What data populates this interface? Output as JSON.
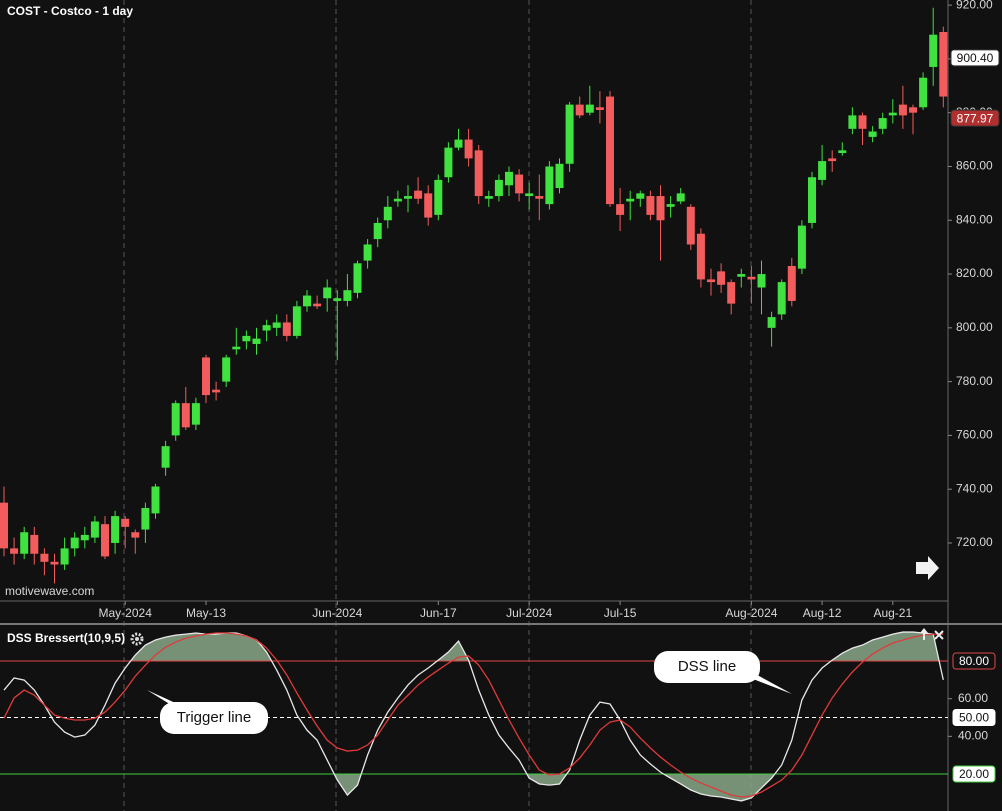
{
  "chart_data": [
    {
      "type": "candlestick",
      "title": "COST - Costco - 1 day",
      "watermark": "motivewave.com",
      "categories": [
        null,
        null,
        null,
        null,
        null,
        null,
        null,
        null,
        null,
        null,
        null,
        null,
        "May-2024",
        null,
        null,
        null,
        null,
        null,
        null,
        null,
        "May-13",
        null,
        null,
        null,
        null,
        null,
        null,
        null,
        null,
        null,
        null,
        null,
        null,
        "Jun-2024",
        null,
        null,
        null,
        null,
        null,
        null,
        null,
        null,
        null,
        "Jun-17",
        null,
        null,
        null,
        null,
        null,
        null,
        null,
        null,
        "Jul-2024",
        null,
        null,
        null,
        null,
        null,
        null,
        null,
        null,
        "Jul-15",
        null,
        null,
        null,
        null,
        null,
        null,
        null,
        null,
        null,
        null,
        null,
        null,
        "Aug-2024",
        null,
        null,
        null,
        null,
        null,
        null,
        "Aug-12",
        null,
        null,
        null,
        null,
        null,
        null,
        "Aug-21",
        null,
        null,
        null,
        null,
        null
      ],
      "open": [
        735,
        718,
        716,
        723,
        716,
        713,
        712,
        718,
        721,
        722,
        727,
        720,
        729,
        724,
        725,
        731,
        748,
        760,
        772,
        764,
        789,
        777,
        780,
        792,
        795,
        794,
        799,
        800,
        802,
        797,
        808,
        809,
        811,
        810,
        810,
        813,
        825,
        833,
        840,
        847,
        848,
        851,
        850,
        842,
        856,
        867,
        870,
        866,
        848,
        849,
        853,
        857,
        849,
        849,
        846,
        852,
        861,
        883,
        880,
        882,
        886,
        846,
        847,
        848,
        849,
        849,
        845,
        847,
        845,
        835,
        818,
        821,
        817,
        819,
        819,
        815,
        800,
        805,
        823,
        822,
        839,
        855,
        863,
        865,
        874,
        879,
        871,
        874,
        879,
        883,
        882,
        882,
        897,
        910
      ],
      "high": [
        741,
        722,
        726,
        726,
        718,
        716,
        722,
        724,
        726,
        730,
        730,
        732,
        730,
        725,
        735,
        742,
        758,
        773,
        778,
        774,
        790,
        780,
        790,
        800,
        799,
        800,
        803,
        805,
        805,
        810,
        814,
        812,
        818,
        814,
        820,
        825,
        833,
        841,
        849,
        851,
        853,
        856,
        853,
        857,
        869,
        874,
        874,
        868,
        851,
        857,
        860,
        859,
        854,
        857,
        862,
        863,
        884,
        886,
        890,
        888,
        888,
        852,
        851,
        851,
        851,
        853,
        849,
        852,
        846,
        837,
        822,
        824,
        818,
        822,
        823,
        825,
        806,
        818,
        826,
        840,
        858,
        868,
        866,
        869,
        882,
        880,
        875,
        880,
        885,
        890,
        883,
        895,
        919,
        912
      ],
      "low": [
        715,
        712,
        714,
        712,
        708,
        705,
        710,
        715,
        718,
        720,
        714,
        716,
        718,
        716,
        720,
        729,
        745,
        758,
        762,
        762,
        772,
        773,
        778,
        790,
        792,
        790,
        795,
        797,
        795,
        796,
        806,
        807,
        806,
        788,
        808,
        811,
        822,
        830,
        837,
        845,
        843,
        846,
        838,
        840,
        854,
        866,
        860,
        846,
        845,
        847,
        849,
        847,
        844,
        840,
        844,
        850,
        858,
        878,
        879,
        876,
        845,
        836,
        840,
        845,
        840,
        825,
        841,
        846,
        829,
        815,
        812,
        813,
        805,
        815,
        809,
        805,
        793,
        803,
        808,
        820,
        837,
        853,
        858,
        864,
        872,
        868,
        869,
        872,
        876,
        874,
        872,
        881,
        890,
        882
      ],
      "close": [
        718,
        716,
        724,
        716,
        713,
        712,
        718,
        722,
        723,
        728,
        715,
        730,
        726,
        722,
        733,
        741,
        756,
        772,
        763,
        772,
        775,
        776,
        789,
        793,
        797,
        796,
        801,
        802,
        797,
        808,
        812,
        808,
        815,
        811,
        814,
        824,
        831,
        839,
        845,
        848,
        849,
        848,
        841,
        855,
        867,
        870,
        863,
        849,
        849,
        855,
        858,
        850,
        850,
        848,
        860,
        861,
        883,
        879,
        883,
        881,
        846,
        842,
        848,
        850,
        842,
        840,
        846,
        850,
        831,
        818,
        817,
        816,
        809,
        820,
        818,
        820,
        804,
        817,
        810,
        838,
        856,
        862,
        862,
        866,
        879,
        874,
        873,
        878,
        880,
        879,
        880,
        893,
        909,
        886
      ],
      "up_color": "#3fe23f",
      "down_color": "#f25c5c",
      "ylim": [
        698.8,
        921.9
      ],
      "yticks": [
        {
          "value": 720,
          "label": "720.00"
        },
        {
          "value": 740,
          "label": "740.00"
        },
        {
          "value": 760,
          "label": "760.00"
        },
        {
          "value": 780,
          "label": "780.00"
        },
        {
          "value": 800,
          "label": "800.00"
        },
        {
          "value": 820,
          "label": "820.00"
        },
        {
          "value": 840,
          "label": "840.00"
        },
        {
          "value": 860,
          "label": "860.00"
        },
        {
          "value": 880,
          "label": "880.00"
        },
        {
          "value": 900,
          "label": "900.00"
        },
        {
          "value": 920,
          "label": "920.00"
        }
      ],
      "grid": false,
      "price_markers": [
        {
          "value": 900.4,
          "label": "900.40",
          "color": "#ffffff",
          "text_color": "#111111"
        },
        {
          "value": 877.97,
          "label": "877.97",
          "color": "#b03030",
          "text_color": "#ffffff"
        }
      ]
    },
    {
      "type": "line",
      "title": "DSS Bressert(10,9,5)",
      "series": [
        {
          "color": "#e8e8e8",
          "values": [
            64.6,
            71.0,
            69.9,
            64.6,
            56.6,
            47.6,
            42.3,
            39.6,
            40.7,
            46.0,
            56.6,
            68.3,
            76.3,
            83.2,
            88.5,
            91.2,
            92.7,
            93.8,
            94.3,
            94.9,
            94.3,
            94.3,
            94.9,
            94.9,
            93.3,
            91.2,
            84.8,
            75.2,
            64.6,
            51.3,
            43.3,
            38.0,
            27.4,
            16.8,
            8.8,
            14.1,
            30.1,
            43.3,
            52.9,
            60.4,
            67.3,
            72.6,
            76.3,
            80.5,
            84.8,
            90.6,
            80.5,
            64.6,
            51.3,
            40.7,
            33.8,
            27.4,
            17.8,
            14.7,
            14.1,
            14.7,
            22.1,
            38.0,
            51.3,
            58.2,
            57.2,
            48.7,
            38.0,
            30.1,
            25.3,
            21.0,
            17.8,
            14.7,
            11.5,
            9.4,
            8.3,
            7.8,
            6.7,
            5.7,
            7.3,
            12.6,
            17.8,
            24.8,
            38.0,
            59.3,
            69.9,
            76.3,
            80.5,
            84.2,
            86.9,
            88.5,
            91.2,
            92.7,
            94.3,
            95.4,
            95.4,
            94.9,
            94.3,
            70.0
          ]
        },
        {
          "color": "#e03a3a",
          "values": [
            49.7,
            60.4,
            64.6,
            61.9,
            56.6,
            51.3,
            49.7,
            48.7,
            48.7,
            49.7,
            52.9,
            58.2,
            64.6,
            72.0,
            77.9,
            83.2,
            87.4,
            90.1,
            92.2,
            93.3,
            94.3,
            94.9,
            94.9,
            94.3,
            93.3,
            91.2,
            86.9,
            80.5,
            72.6,
            63.0,
            54.0,
            45.5,
            38.0,
            33.8,
            32.2,
            32.7,
            35.4,
            40.7,
            48.7,
            56.6,
            61.9,
            67.3,
            71.5,
            75.2,
            78.9,
            82.1,
            82.7,
            77.9,
            69.9,
            59.3,
            48.7,
            39.1,
            30.1,
            22.1,
            19.5,
            20.0,
            23.2,
            28.5,
            35.4,
            43.3,
            47.6,
            48.7,
            45.0,
            39.1,
            33.8,
            29.0,
            24.8,
            21.0,
            17.8,
            15.2,
            13.1,
            10.9,
            8.8,
            7.8,
            8.3,
            10.4,
            13.6,
            16.8,
            22.1,
            30.1,
            40.7,
            51.3,
            60.4,
            67.8,
            74.2,
            79.5,
            83.7,
            86.9,
            89.6,
            91.2,
            92.7,
            93.8,
            94.3,
            94.3
          ]
        }
      ],
      "ylim": [
        0.35,
        96.5
      ],
      "yticks": [
        {
          "value": 60,
          "label": "60.00"
        },
        {
          "value": 40,
          "label": "40.00"
        }
      ],
      "levels": [
        {
          "value": 80,
          "label": "80.00",
          "color": "#e04848",
          "dashed": false
        },
        {
          "value": 50,
          "label": "50.00",
          "color": "#ffffff",
          "dashed": true
        },
        {
          "value": 20,
          "label": "20.00",
          "color": "#3fcf3f",
          "dashed": false
        }
      ],
      "fill_color": "#8aa88a",
      "annotations": [
        {
          "text": "Trigger line"
        },
        {
          "text": "DSS line"
        }
      ]
    }
  ]
}
